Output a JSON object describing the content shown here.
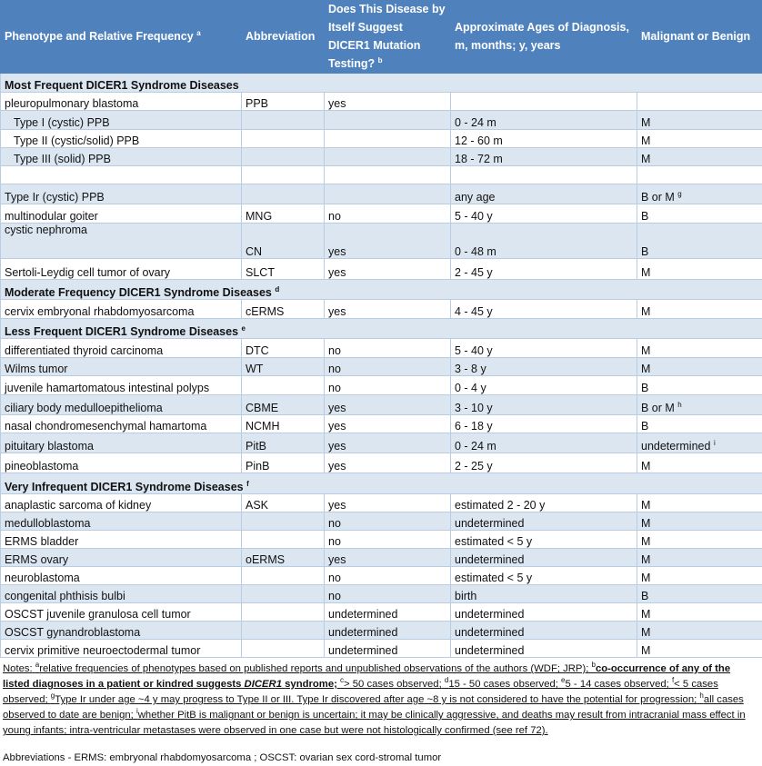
{
  "table": {
    "header": [
      {
        "text": "Phenotype and Relative Frequency",
        "sup": "a"
      },
      {
        "text": "Abbreviation"
      },
      {
        "text": "Does This Disease by Itself Suggest DICER1 Mutation Testing?",
        "sup": "b"
      },
      {
        "text": "Approximate Ages of Diagnosis, m, months; y, years"
      },
      {
        "text": "Malignant or Benign"
      }
    ],
    "rows": [
      {
        "section": "Most Frequent DICER1 Syndrome Diseases"
      },
      {
        "cells": [
          "pleuropulmonary blastoma",
          "PPB",
          "yes",
          null,
          null
        ]
      },
      {
        "indent": true,
        "cells": [
          "Type I (cystic) PPB",
          null,
          null,
          "0 - 24 m",
          "M"
        ]
      },
      {
        "indent": true,
        "cells": [
          "Type II (cystic/solid) PPB",
          null,
          null,
          "12 - 60 m",
          "M"
        ]
      },
      {
        "indent": true,
        "cells": [
          "Type III (solid) PPB",
          null,
          null,
          "18 - 72 m",
          "M"
        ]
      },
      {
        "cells": []
      },
      {
        "cells": [
          "Type Ir (cystic) PPB",
          null,
          null,
          "any age",
          {
            "text": "B or M",
            "sup": "g"
          }
        ]
      },
      {
        "cells": [
          "multinodular goiter",
          "MNG",
          "no",
          "5 -  40 y",
          "B"
        ]
      },
      {
        "cells": [
          "cystic nephroma",
          "CN",
          "yes",
          "0 - 48 m",
          "B"
        ]
      },
      {
        "cells": [
          "Sertoli-Leydig cell tumor of ovary",
          "SLCT",
          "yes",
          "2 - 45 y",
          "M"
        ]
      },
      {
        "section": "Moderate Frequency DICER1 Syndrome Diseases",
        "sup": "d"
      },
      {
        "cells": [
          "cervix embryonal rhabdomyosarcoma",
          "cERMS",
          "yes",
          "4 - 45 y",
          "M"
        ]
      },
      {
        "section": "Less Frequent DICER1 Syndrome Diseases",
        "sup": "e"
      },
      {
        "cells": [
          "differentiated thyroid carcinoma",
          "DTC",
          "no",
          "5 - 40 y",
          "M"
        ]
      },
      {
        "cells": [
          "Wilms tumor",
          "WT",
          "no",
          "3 - 8 y",
          "M"
        ]
      },
      {
        "cells": [
          "juvenile hamartomatous intestinal polyps",
          null,
          "no",
          "0 - 4 y",
          "B"
        ]
      },
      {
        "cells": [
          "ciliary body medulloepithelioma",
          "CBME",
          "yes",
          "3 - 10 y",
          {
            "text": "B or M",
            "sup": "h"
          }
        ]
      },
      {
        "cells": [
          "nasal chondromesenchymal hamartoma",
          "NCMH",
          "yes",
          "6 - 18 y",
          "B"
        ]
      },
      {
        "cells": [
          "pituitary blastoma",
          "PitB",
          "yes",
          "0 - 24 m",
          {
            "text": "undetermined",
            "sup": "i"
          }
        ]
      },
      {
        "cells": [
          "pineoblastoma",
          "PinB",
          "yes",
          "2 - 25 y",
          "M"
        ]
      },
      {
        "section": "Very Infrequent DICER1 Syndrome Diseases",
        "sup": "f"
      },
      {
        "cells": [
          "anaplastic sarcoma of kidney",
          "ASK",
          "yes",
          "estimated 2 - 20 y",
          "M"
        ]
      },
      {
        "cells": [
          "medulloblastoma",
          null,
          "no",
          "undetermined",
          "M"
        ]
      },
      {
        "cells": [
          "ERMS bladder",
          null,
          "no",
          "estimated < 5 y",
          "M"
        ]
      },
      {
        "cells": [
          "ERMS ovary",
          "oERMS",
          "yes",
          "undetermined",
          "M"
        ]
      },
      {
        "cells": [
          "neuroblastoma",
          null,
          "no",
          "estimated < 5 y",
          "M"
        ]
      },
      {
        "cells": [
          "congenital phthisis bulbi",
          null,
          "no",
          "birth",
          "B"
        ]
      },
      {
        "cells": [
          "OSCST juvenile granulosa cell tumor",
          null,
          "undetermined",
          "undetermined",
          "M"
        ]
      },
      {
        "cells": [
          "OSCST gynandroblastoma",
          null,
          "undetermined",
          "undetermined",
          "M"
        ]
      },
      {
        "cells": [
          "cervix primitive neuroectodermal tumor",
          null,
          "undetermined",
          "undetermined",
          "M"
        ]
      }
    ]
  },
  "notes": {
    "label": "Notes:",
    "parts": [
      {
        "sup": "a",
        "text": "relative frequencies of phenotypes based on published reports and unpublished observations of the authors (WDF; JRP);"
      },
      {
        "sup": "b",
        "text": "co-occurrence of any of the listed diagnoses in a patient or kindred suggests",
        "bold": true
      },
      {
        "text": "DICER1",
        "bold": true,
        "italic": true
      },
      {
        "text": "syndrome;",
        "bold": true
      },
      {
        "sup": "c",
        "text": "> 50 cases observed;"
      },
      {
        "sup": "d",
        "text": "15 - 50 cases observed;"
      },
      {
        "sup": "e",
        "text": "5 - 14 cases observed;"
      },
      {
        "sup": "f",
        "text": "< 5 cases observed;"
      },
      {
        "sup": "g",
        "text": "Type Ir under age ~4 y may progress to Type II or III. Type Ir discovered after age ~8 y is not considered to have the potential for progression;"
      },
      {
        "sup": "h",
        "text": "all cases observed to date are benign;"
      },
      {
        "sup": "i",
        "text": "whether PitB is malignant or benign is uncertain; it may be clinically aggressive, and deaths may result from intracranial mass effect in young infants; intra-ventricular metastases were observed in one case but were not histologically confirmed (see ref 72)."
      }
    ]
  },
  "abbreviations": "Abbreviations -  ERMS:  embryonal rhabdomyosarcoma ; OSCST: ovarian sex cord-stromal tumor"
}
